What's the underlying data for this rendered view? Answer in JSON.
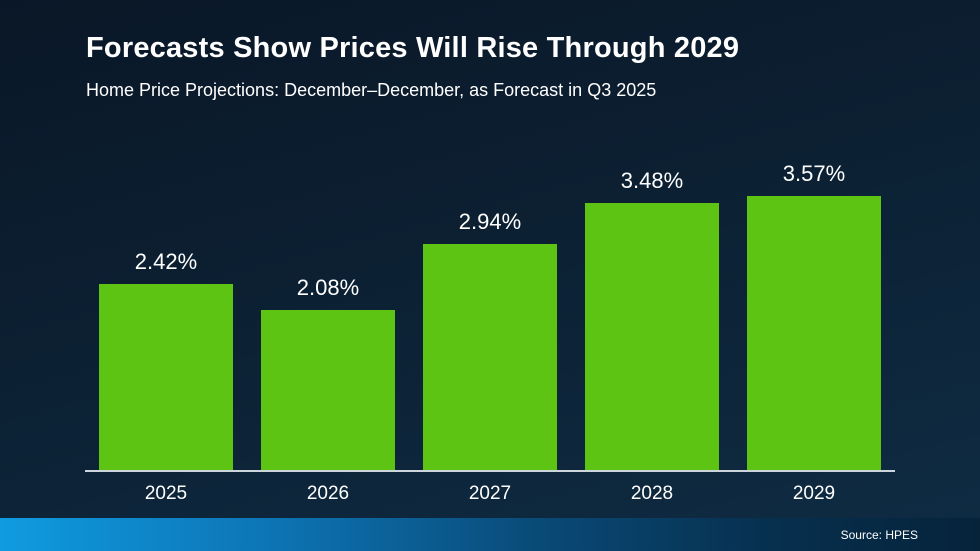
{
  "page": {
    "source": "Source: HPES"
  },
  "colors": {
    "background_top": "#0a1727",
    "background_bottom": "#0f2c44",
    "bar": "#5ec414",
    "axis": "#cdd5dc",
    "footer_gradient_left": "#0f9be0",
    "footer_gradient_right": "#06233a",
    "text": "#ffffff"
  },
  "chart_data": {
    "type": "bar",
    "title": "Forecasts Show Prices Will Rise Through 2029",
    "subtitle": "Home Price Projections: December–December, as Forecast in Q3 2025",
    "categories": [
      "2025",
      "2026",
      "2027",
      "2028",
      "2029"
    ],
    "values": [
      2.42,
      2.08,
      2.94,
      3.48,
      3.57
    ],
    "value_labels": [
      "2.42%",
      "2.08%",
      "2.94%",
      "3.48%",
      "3.57%"
    ],
    "bar_color": "#5ec414",
    "xlabel": "",
    "ylabel": "",
    "ylim": [
      0,
      3.65
    ],
    "grid": false,
    "legend": false,
    "source_note": "Source: HPES"
  }
}
